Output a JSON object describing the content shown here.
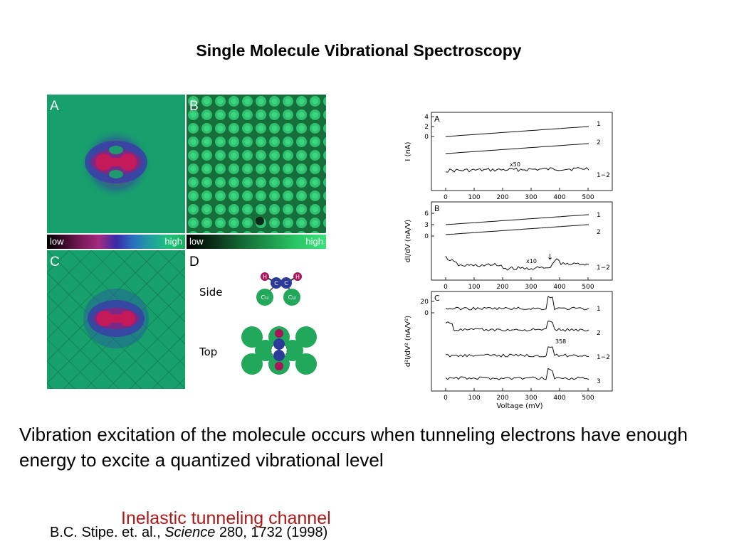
{
  "title": "Single Molecule Vibrational Spectroscopy",
  "stm_panels": {
    "a": {
      "label": "A",
      "colorbar_low": "low",
      "colorbar_high": "high"
    },
    "b": {
      "label": "B",
      "colorbar_low": "low",
      "colorbar_high": "high"
    },
    "c": {
      "label": "C"
    },
    "d": {
      "label": "D",
      "side_label": "Side",
      "top_label": "Top",
      "atom_h": "H",
      "atom_c": "C",
      "atom_cu": "Cu"
    }
  },
  "spectra": {
    "panel_a": {
      "label": "A",
      "ylabel": "I (nA)",
      "yticks": [
        "4",
        "2",
        "0"
      ],
      "traces": [
        "1",
        "2",
        "1−2"
      ],
      "annotation": "x50"
    },
    "panel_b": {
      "label": "B",
      "ylabel": "dI/dV (nA/V)",
      "yticks": [
        "6",
        "3",
        "0"
      ],
      "traces": [
        "1",
        "2",
        "1−2"
      ],
      "annotation": "x10",
      "arrow": "↓"
    },
    "panel_c": {
      "label": "C",
      "ylabel": "d²I/dV² (nA/V²)",
      "yticks": [
        "20",
        "0"
      ],
      "traces": [
        "1",
        "2",
        "1−2",
        "3"
      ],
      "peak_label": "358"
    },
    "xticks": [
      "0",
      "100",
      "200",
      "300",
      "400",
      "500"
    ],
    "xlabel": "Voltage (mV)"
  },
  "body_text": "Vibration excitation of the molecule occurs when tunneling electrons have enough energy to excite a quantized vibrational level",
  "citation": {
    "authors": "B.C. Stipe. et. al., ",
    "journal": "Science",
    "ref": " 280, 1732 (1998)"
  },
  "channel_label": "Inelastic tunneling channel",
  "colors": {
    "stm_green": "#17a06c",
    "lattice_green": "#1f8a4a",
    "molecule": "#a8145a",
    "title_red": "#b01818"
  }
}
